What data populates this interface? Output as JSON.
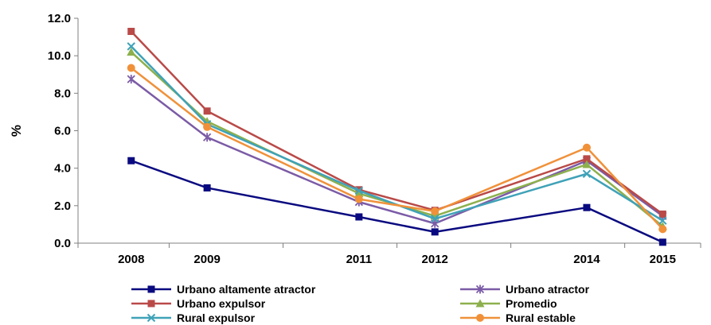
{
  "chart_data": {
    "type": "line",
    "title": "",
    "xlabel": "",
    "ylabel": "%",
    "x": [
      2008,
      2009,
      2011,
      2012,
      2014,
      2015
    ],
    "x_tick_labels": [
      "2008",
      "2009",
      "2011",
      "2012",
      "2014",
      "2015"
    ],
    "xlim": [
      2007.3,
      2015.5
    ],
    "ylim": [
      0,
      12
    ],
    "y_ticks": [
      0,
      2,
      4,
      6,
      8,
      10,
      12
    ],
    "y_tick_labels": [
      "0.0",
      "2.0",
      "4.0",
      "6.0",
      "8.0",
      "10.0",
      "12.0"
    ],
    "grid": false,
    "legend_position": "bottom",
    "series": [
      {
        "name": "Urbano altamente atractor",
        "color": "#0A0A80",
        "marker": "square",
        "values": [
          4.4,
          2.95,
          1.4,
          0.6,
          1.9,
          0.05
        ]
      },
      {
        "name": "Urbano atractor",
        "color": "#7B5BA6",
        "marker": "asterisk",
        "values": [
          8.75,
          5.65,
          2.2,
          1.05,
          4.4,
          1.45
        ]
      },
      {
        "name": "Urbano expulsor",
        "color": "#B94A48",
        "marker": "square",
        "values": [
          11.3,
          7.05,
          2.85,
          1.75,
          4.5,
          1.55
        ]
      },
      {
        "name": "Promedio",
        "color": "#8DB04D",
        "marker": "triangle",
        "values": [
          10.2,
          6.5,
          2.65,
          1.45,
          4.2,
          0.9
        ]
      },
      {
        "name": "Rural expulsor",
        "color": "#3FA2B8",
        "marker": "x",
        "values": [
          10.5,
          6.35,
          2.8,
          1.3,
          3.7,
          1.2
        ]
      },
      {
        "name": "Rural estable",
        "color": "#F0913A",
        "marker": "circle",
        "values": [
          9.35,
          6.2,
          2.35,
          1.7,
          5.1,
          0.75
        ]
      }
    ]
  }
}
